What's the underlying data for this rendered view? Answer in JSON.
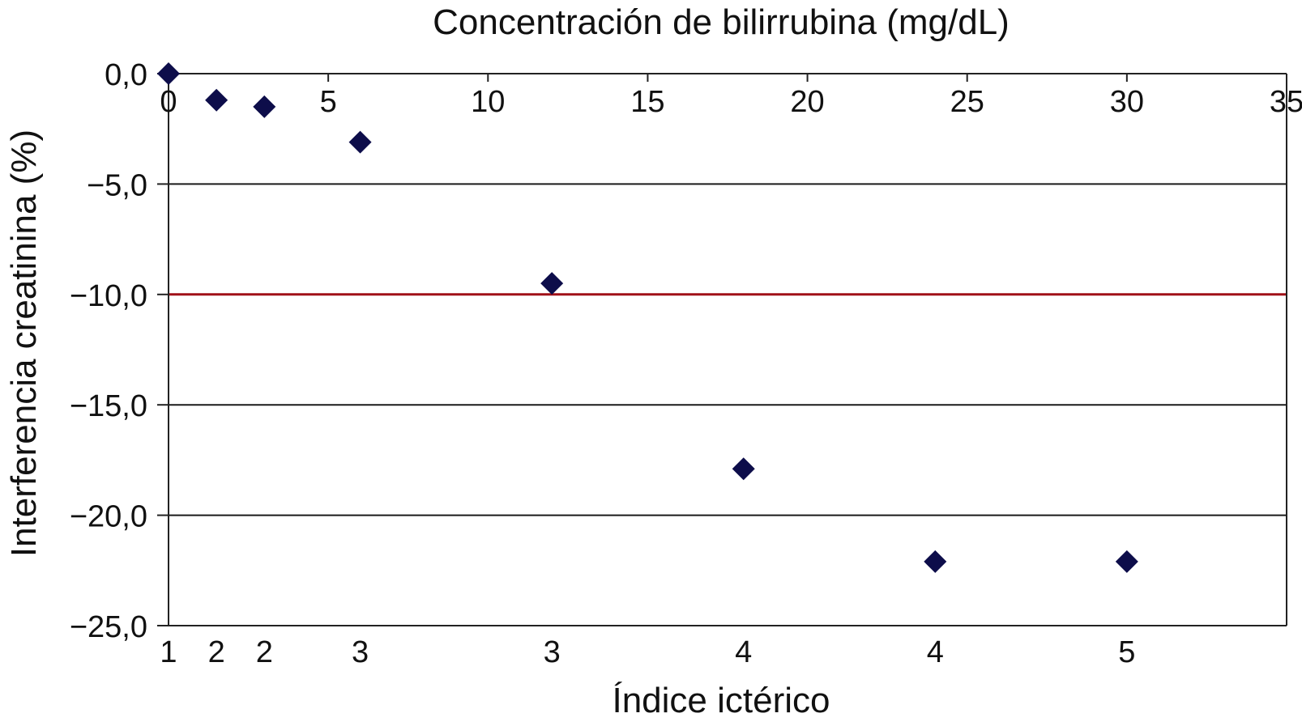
{
  "chart_data": {
    "type": "scatter",
    "title": "Concentración de bilirrubina (mg/dL)",
    "xlabel": "Índice ictérico",
    "ylabel": "Interferencia creatinina (%)",
    "x_top_ticks": [
      "0",
      "5",
      "10",
      "15",
      "20",
      "25",
      "30",
      "35"
    ],
    "x_top_range": [
      0,
      35
    ],
    "y_ticks": [
      "0,0",
      "−5,0",
      "−10,0",
      "−15,0",
      "−20,0",
      "−25,0"
    ],
    "y_range": [
      -25,
      0
    ],
    "threshold": -10,
    "grid": "horizontal",
    "series": [
      {
        "points": [
          {
            "x": 0,
            "y": 0.0,
            "index": "1"
          },
          {
            "x": 1.5,
            "y": -1.2,
            "index": "2"
          },
          {
            "x": 3,
            "y": -1.5,
            "index": "2"
          },
          {
            "x": 6,
            "y": -3.1,
            "index": "3"
          },
          {
            "x": 12,
            "y": -9.5,
            "index": "3"
          },
          {
            "x": 18,
            "y": -17.9,
            "index": "4"
          },
          {
            "x": 24,
            "y": -22.1,
            "index": "4"
          },
          {
            "x": 30,
            "y": -22.1,
            "index": "5"
          }
        ]
      }
    ],
    "colors": {
      "marker": "#0d0d4a",
      "threshold": "#a01018",
      "grid": "#1a1a1a",
      "axis": "#222222"
    }
  }
}
